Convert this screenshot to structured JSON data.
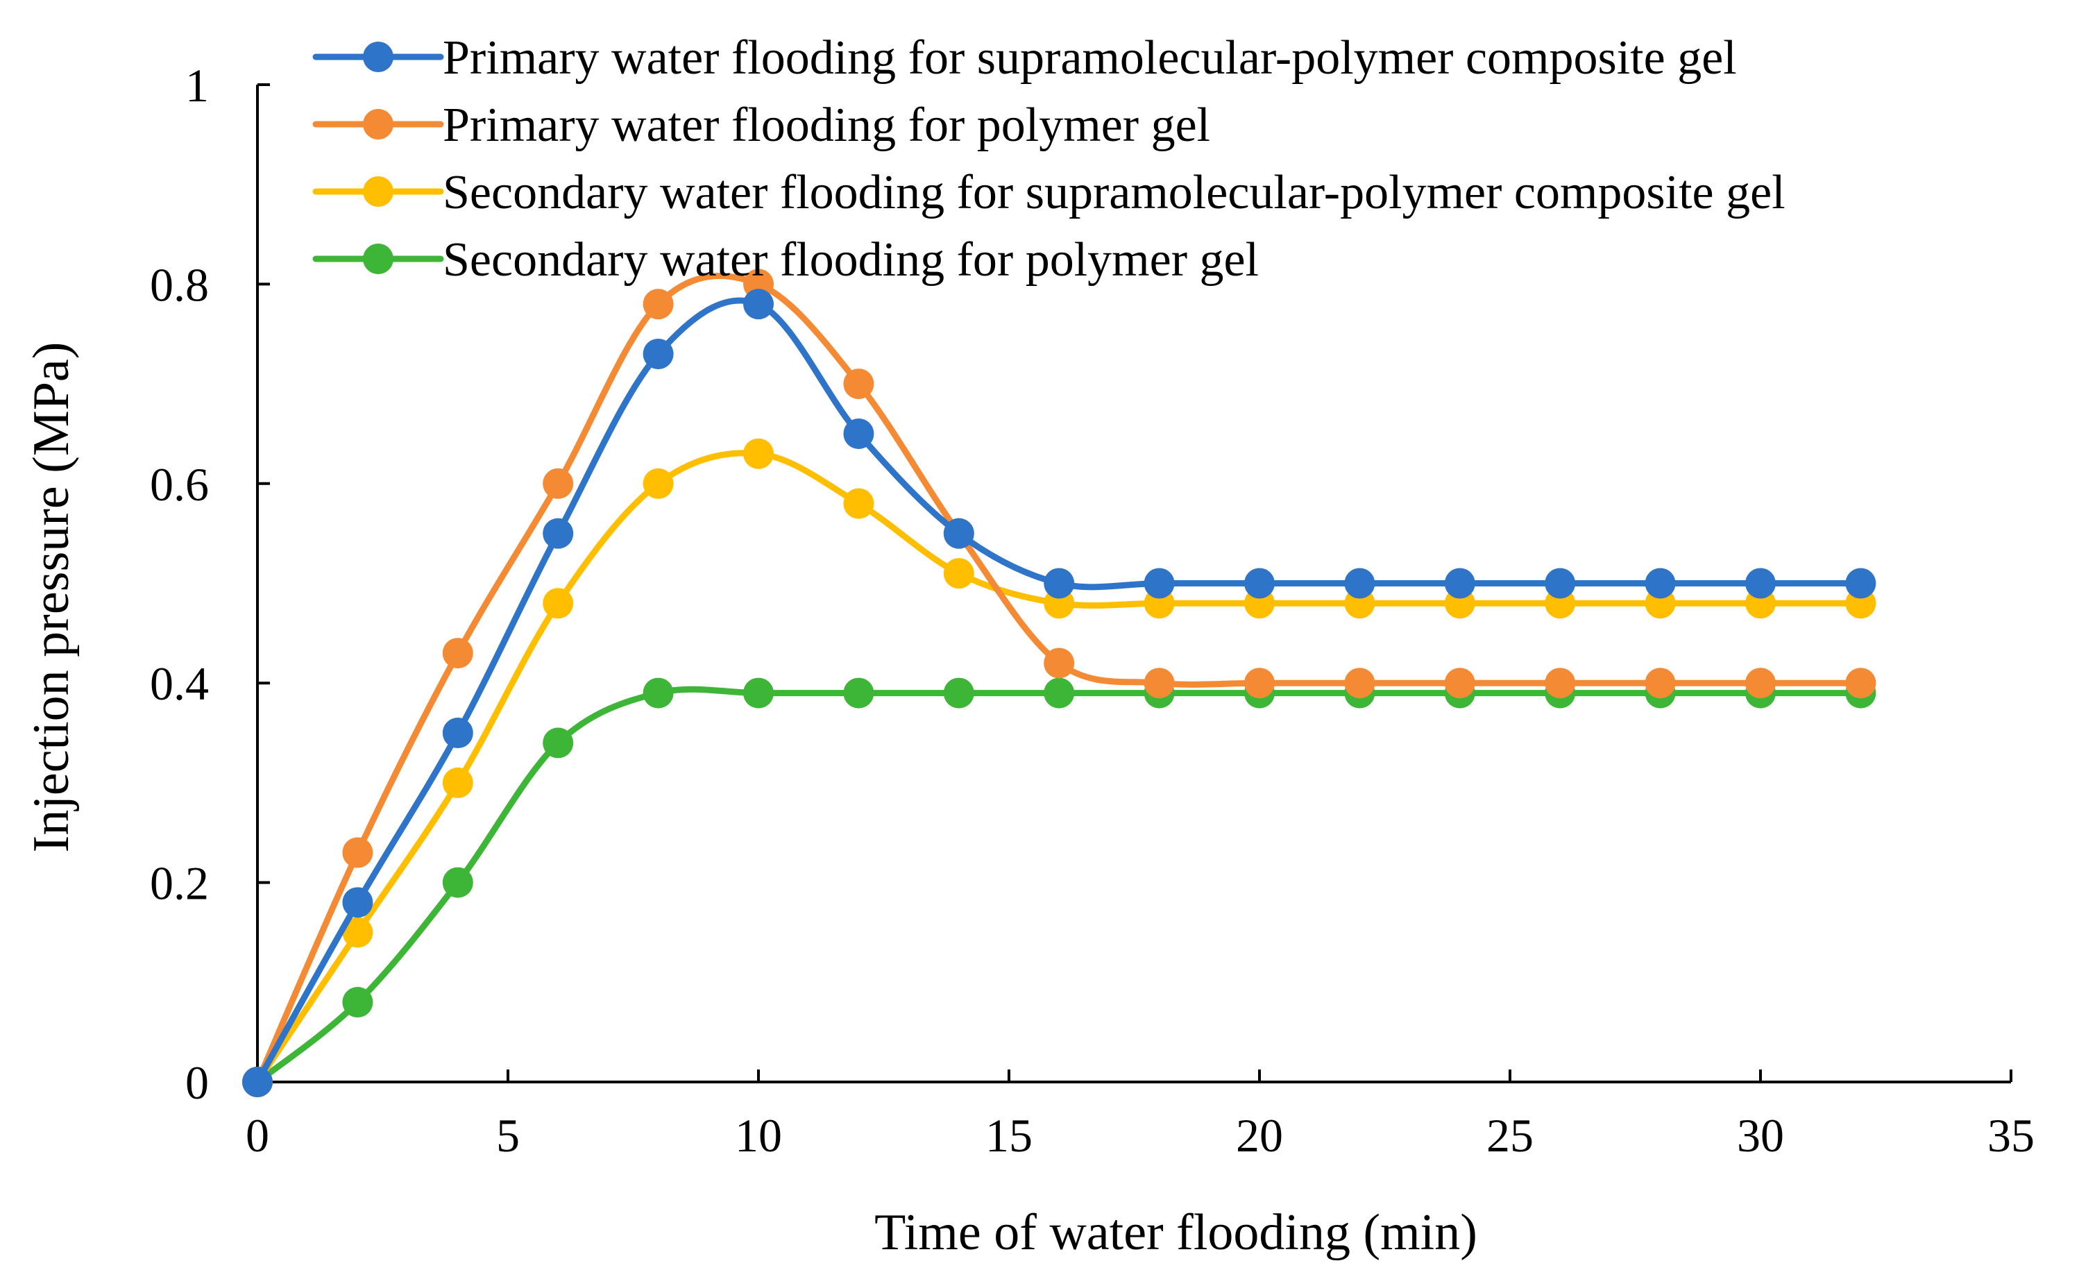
{
  "chart_data": {
    "type": "line",
    "title": "",
    "xlabel": "Time of water flooding (min)",
    "ylabel": "Injection pressure (MPa)",
    "xlim": [
      0,
      35
    ],
    "ylim": [
      0,
      1
    ],
    "xticks": [
      0,
      5,
      10,
      15,
      20,
      25,
      30,
      35
    ],
    "xtick_labels": [
      "0",
      "5",
      "10",
      "15",
      "20",
      "25",
      "30",
      "35"
    ],
    "yticks": [
      0,
      0.2,
      0.4,
      0.6,
      0.8,
      1
    ],
    "ytick_labels": [
      "0",
      "0.2",
      "0.4",
      "0.6",
      "0.8",
      "1"
    ],
    "grid": false,
    "legend_position": "top",
    "x": [
      0,
      2,
      4,
      6,
      8,
      10,
      12,
      14,
      16,
      18,
      20,
      22,
      24,
      26,
      28,
      30,
      32
    ],
    "series": [
      {
        "name": "Primary water flooding for supramolecular-polymer composite gel",
        "color": "#2E74C8",
        "values": [
          0,
          0.18,
          0.35,
          0.55,
          0.73,
          0.78,
          0.65,
          0.55,
          0.5,
          0.5,
          0.5,
          0.5,
          0.5,
          0.5,
          0.5,
          0.5,
          0.5
        ]
      },
      {
        "name": "Primary water flooding for polymer gel",
        "color": "#F58A35",
        "values": [
          0,
          0.23,
          0.43,
          0.6,
          0.78,
          0.8,
          0.7,
          0.55,
          0.42,
          0.4,
          0.4,
          0.4,
          0.4,
          0.4,
          0.4,
          0.4,
          0.4
        ]
      },
      {
        "name": "Secondary water flooding for supramolecular-polymer composite gel",
        "color": "#FFBF00",
        "values": [
          0,
          0.15,
          0.3,
          0.48,
          0.6,
          0.63,
          0.58,
          0.51,
          0.48,
          0.48,
          0.48,
          0.48,
          0.48,
          0.48,
          0.48,
          0.48,
          0.48
        ]
      },
      {
        "name": "Secondary water flooding for polymer gel",
        "color": "#3DB536",
        "values": [
          0,
          0.08,
          0.2,
          0.34,
          0.39,
          0.39,
          0.39,
          0.39,
          0.39,
          0.39,
          0.39,
          0.39,
          0.39,
          0.39,
          0.39,
          0.39,
          0.39
        ]
      }
    ]
  }
}
